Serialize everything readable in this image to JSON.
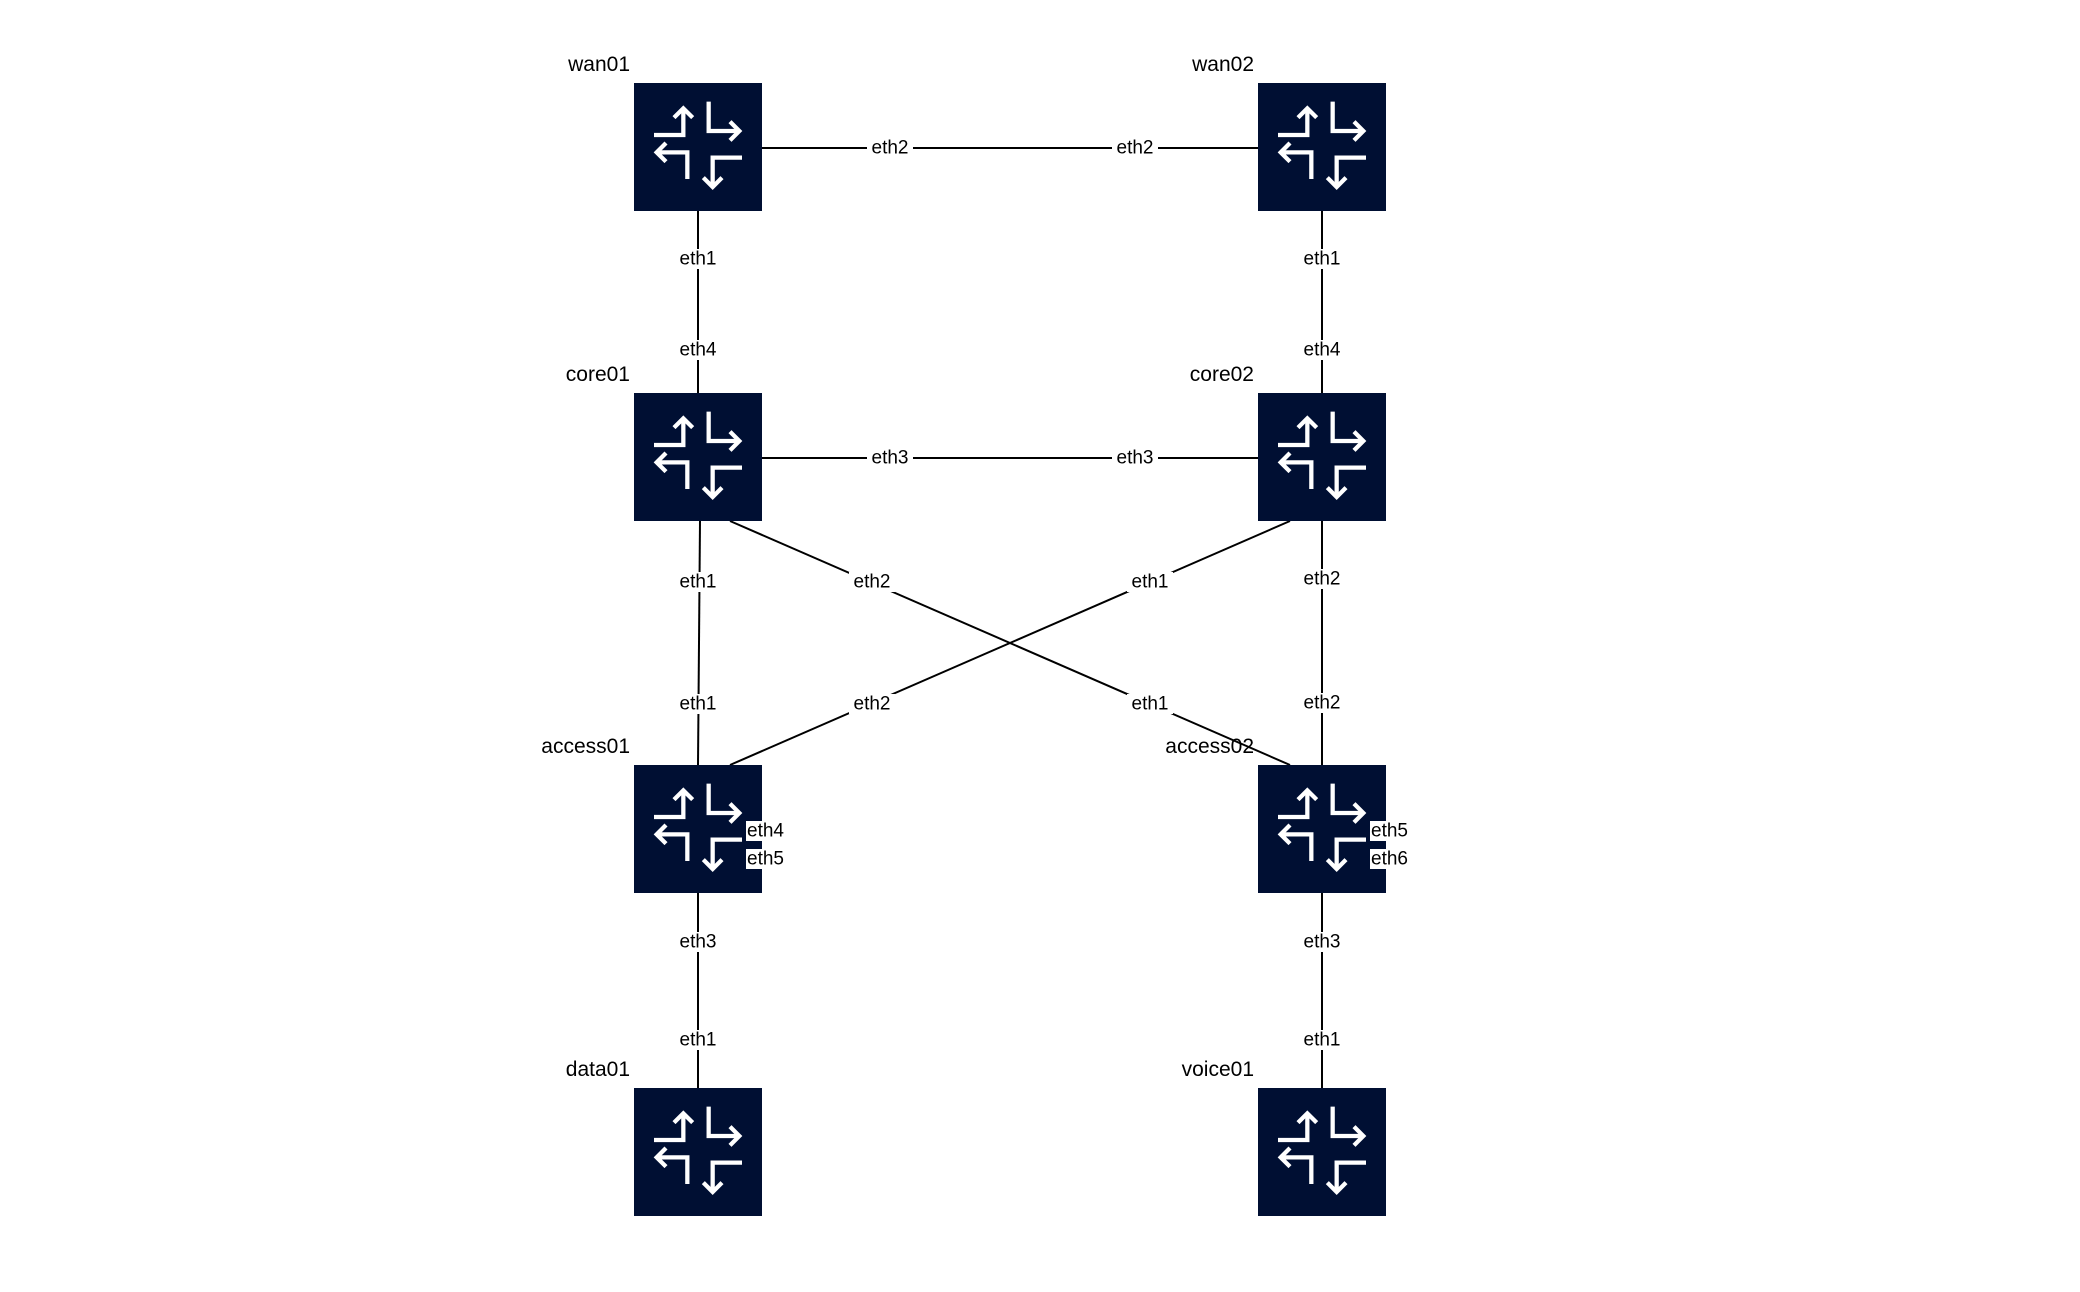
{
  "colors": {
    "node_fill": "#000f33",
    "glyph": "#ffffff",
    "link": "#000000",
    "background": "#ffffff"
  },
  "node_icon": "router-icon",
  "nodes": [
    {
      "id": "wan01",
      "label": "wan01"
    },
    {
      "id": "wan02",
      "label": "wan02"
    },
    {
      "id": "core01",
      "label": "core01"
    },
    {
      "id": "core02",
      "label": "core02"
    },
    {
      "id": "access01",
      "label": "access01"
    },
    {
      "id": "access02",
      "label": "access02"
    },
    {
      "id": "data01",
      "label": "data01"
    },
    {
      "id": "voice01",
      "label": "voice01"
    }
  ],
  "links": [
    {
      "a": "wan01",
      "a_port": "eth2",
      "b": "wan02",
      "b_port": "eth2"
    },
    {
      "a": "wan01",
      "a_port": "eth1",
      "b": "core01",
      "b_port": "eth4"
    },
    {
      "a": "wan02",
      "a_port": "eth1",
      "b": "core02",
      "b_port": "eth4"
    },
    {
      "a": "core01",
      "a_port": "eth3",
      "b": "core02",
      "b_port": "eth3"
    },
    {
      "a": "core01",
      "a_port": "eth1",
      "b": "access01",
      "b_port": "eth1"
    },
    {
      "a": "core01",
      "a_port": "eth2",
      "b": "access02",
      "b_port": "eth1"
    },
    {
      "a": "core02",
      "a_port": "eth1",
      "b": "access01",
      "b_port": "eth2"
    },
    {
      "a": "core02",
      "a_port": "eth2",
      "b": "access02",
      "b_port": "eth2"
    },
    {
      "a": "access01",
      "a_port": "eth3",
      "b": "data01",
      "b_port": "eth1"
    },
    {
      "a": "access02",
      "a_port": "eth3",
      "b": "voice01",
      "b_port": "eth1"
    }
  ],
  "unconnected_ports": [
    {
      "node": "access01",
      "ports": [
        "eth4",
        "eth5"
      ]
    },
    {
      "node": "access02",
      "ports": [
        "eth5",
        "eth6"
      ]
    }
  ]
}
